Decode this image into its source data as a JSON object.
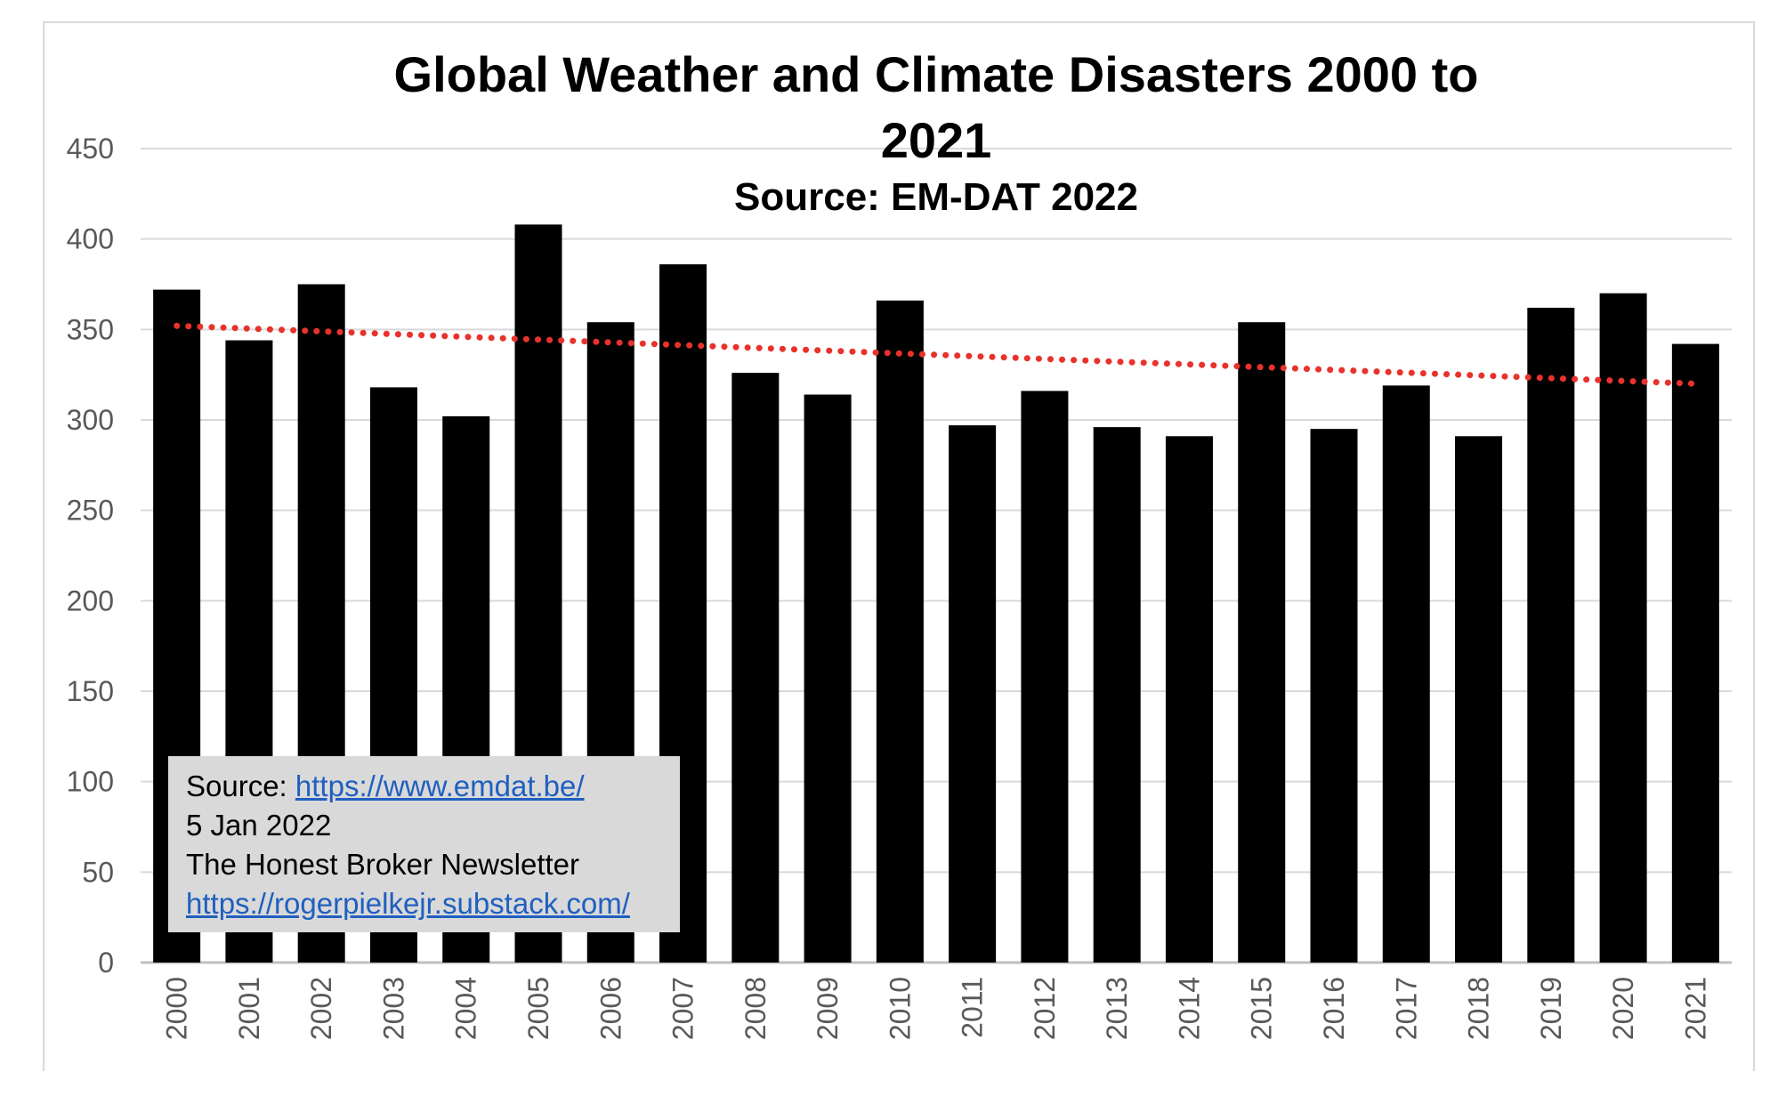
{
  "chart_data": {
    "type": "bar",
    "title": "Global Weather and Climate Disasters 2000 to 2021",
    "title_lines": [
      "Global Weather and Climate Disasters 2000 to",
      "2021"
    ],
    "subtitle": "Source: EM-DAT 2022",
    "xlabel": "",
    "ylabel": "",
    "categories": [
      "2000",
      "2001",
      "2002",
      "2003",
      "2004",
      "2005",
      "2006",
      "2007",
      "2008",
      "2009",
      "2010",
      "2011",
      "2012",
      "2013",
      "2014",
      "2015",
      "2016",
      "2017",
      "2018",
      "2019",
      "2020",
      "2021"
    ],
    "values": [
      372,
      344,
      375,
      318,
      302,
      408,
      354,
      386,
      326,
      314,
      366,
      297,
      316,
      296,
      291,
      354,
      295,
      319,
      291,
      362,
      370,
      342
    ],
    "ylim": [
      0,
      450
    ],
    "yticks": [
      0,
      50,
      100,
      150,
      200,
      250,
      300,
      350,
      400,
      450
    ],
    "grid": true,
    "legend": "none",
    "bar_color": "#000000",
    "trendline": {
      "type": "linear",
      "style": "dotted",
      "color": "#e8322b",
      "start": 352,
      "end": 320
    }
  },
  "annotation": {
    "source_label": "Source: ",
    "source_url": "https://www.emdat.be/",
    "date": "5 Jan 2022",
    "newsletter": "The Honest Broker Newsletter",
    "newsletter_url": "https://rogerpielkejr.substack.com/"
  }
}
